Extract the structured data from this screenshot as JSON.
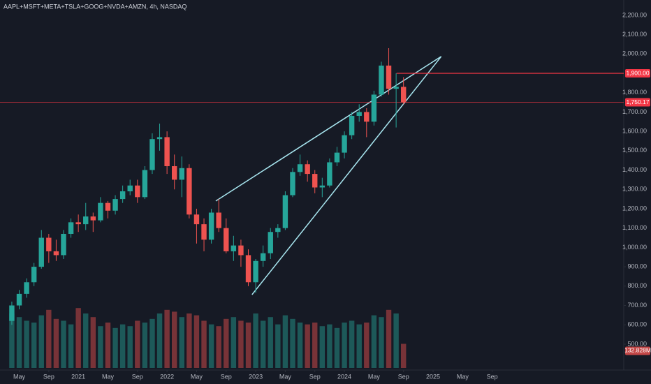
{
  "chart_data": {
    "type": "candlestick",
    "title": "AAPL+MSFT+META+TSLA+GOOG+NVDA+AMZN, 4h, NASDAQ",
    "up_color": "#26a69a",
    "down_color": "#ef5350",
    "xlim": [
      1.4,
      85.8
    ],
    "ylim": [
      377,
      2279
    ],
    "volume_lim": [
      0,
      500
    ],
    "xticks": [
      {
        "value": 4,
        "label": "May"
      },
      {
        "value": 8,
        "label": "Sep"
      },
      {
        "value": 12,
        "label": "2021"
      },
      {
        "value": 16,
        "label": "May"
      },
      {
        "value": 20,
        "label": "Sep"
      },
      {
        "value": 24,
        "label": "2022"
      },
      {
        "value": 28,
        "label": "May"
      },
      {
        "value": 32,
        "label": "Sep"
      },
      {
        "value": 36,
        "label": "2023"
      },
      {
        "value": 40,
        "label": "May"
      },
      {
        "value": 44,
        "label": "Sep"
      },
      {
        "value": 48,
        "label": "2024"
      },
      {
        "value": 52,
        "label": "May"
      },
      {
        "value": 56,
        "label": "Sep"
      },
      {
        "value": 60,
        "label": "2025"
      },
      {
        "value": 64,
        "label": "May"
      },
      {
        "value": 68,
        "label": "Sep"
      }
    ],
    "yticks": [
      {
        "value": 500,
        "label": "500.00"
      },
      {
        "value": 600,
        "label": "600.00"
      },
      {
        "value": 700,
        "label": "700.00"
      },
      {
        "value": 800,
        "label": "800.00"
      },
      {
        "value": 900,
        "label": "900.00"
      },
      {
        "value": 1000,
        "label": "1,000.00"
      },
      {
        "value": 1100,
        "label": "1,100.00"
      },
      {
        "value": 1200,
        "label": "1,200.00"
      },
      {
        "value": 1300,
        "label": "1,300.00"
      },
      {
        "value": 1400,
        "label": "1,400.00"
      },
      {
        "value": 1500,
        "label": "1,500.00"
      },
      {
        "value": 1600,
        "label": "1,600.00"
      },
      {
        "value": 1700,
        "label": "1,700.00"
      },
      {
        "value": 1800,
        "label": "1,800.00"
      },
      {
        "value": 2000,
        "label": "2,000.00"
      },
      {
        "value": 2100,
        "label": "2,100.00"
      },
      {
        "value": 2200,
        "label": "2,200.00"
      }
    ],
    "x": [
      3,
      4,
      5,
      6,
      7,
      8,
      9,
      10,
      11,
      12,
      13,
      14,
      15,
      16,
      17,
      18,
      19,
      20,
      21,
      22,
      23,
      24,
      25,
      26,
      27,
      28,
      29,
      30,
      31,
      32,
      33,
      34,
      35,
      36,
      37,
      38,
      39,
      40,
      41,
      42,
      43,
      44,
      45,
      46,
      47,
      48,
      49,
      50,
      51,
      52,
      53,
      54,
      55,
      56
    ],
    "open": [
      620,
      700,
      760,
      820,
      900,
      1050,
      980,
      960,
      1070,
      1130,
      1120,
      1160,
      1140,
      1230,
      1190,
      1250,
      1290,
      1320,
      1260,
      1400,
      1560,
      1570,
      1420,
      1350,
      1410,
      1170,
      1120,
      1040,
      1180,
      1100,
      980,
      1010,
      960,
      820,
      930,
      970,
      1080,
      1100,
      1270,
      1390,
      1430,
      1380,
      1310,
      1320,
      1440,
      1490,
      1580,
      1680,
      1700,
      1650,
      1790,
      1940,
      1820,
      1830
    ],
    "high": [
      720,
      780,
      840,
      920,
      1090,
      1070,
      1040,
      1090,
      1150,
      1170,
      1230,
      1180,
      1260,
      1240,
      1270,
      1320,
      1350,
      1350,
      1420,
      1590,
      1640,
      1600,
      1480,
      1470,
      1430,
      1200,
      1150,
      1200,
      1250,
      1150,
      1060,
      1040,
      990,
      940,
      1010,
      1100,
      1120,
      1290,
      1410,
      1480,
      1450,
      1400,
      1360,
      1460,
      1520,
      1600,
      1700,
      1740,
      1720,
      1810,
      1960,
      2030,
      1900,
      1880
    ],
    "low": [
      600,
      680,
      740,
      800,
      890,
      920,
      930,
      940,
      1050,
      1080,
      1090,
      1080,
      1130,
      1150,
      1170,
      1230,
      1270,
      1230,
      1250,
      1380,
      1500,
      1380,
      1300,
      1260,
      1150,
      1020,
      980,
      1020,
      1080,
      970,
      930,
      900,
      800,
      765,
      900,
      940,
      1050,
      1090,
      1260,
      1370,
      1340,
      1280,
      1260,
      1310,
      1420,
      1460,
      1560,
      1650,
      1570,
      1630,
      1780,
      1790,
      1620,
      1740
    ],
    "close": [
      700,
      760,
      820,
      900,
      1050,
      980,
      960,
      1070,
      1130,
      1120,
      1160,
      1140,
      1230,
      1190,
      1250,
      1290,
      1320,
      1260,
      1400,
      1560,
      1570,
      1420,
      1350,
      1410,
      1170,
      1120,
      1040,
      1180,
      1100,
      980,
      1010,
      960,
      820,
      930,
      970,
      1080,
      1100,
      1270,
      1390,
      1430,
      1380,
      1310,
      1320,
      1440,
      1490,
      1580,
      1680,
      1700,
      1650,
      1790,
      1940,
      1820,
      1830,
      1750.17
    ],
    "volume": [
      300,
      280,
      260,
      250,
      290,
      320,
      270,
      260,
      240,
      330,
      300,
      280,
      230,
      250,
      220,
      240,
      230,
      260,
      250,
      270,
      300,
      320,
      310,
      280,
      300,
      290,
      260,
      240,
      230,
      270,
      280,
      260,
      250,
      300,
      260,
      280,
      240,
      290,
      270,
      250,
      240,
      250,
      230,
      240,
      220,
      250,
      260,
      240,
      250,
      290,
      280,
      320,
      300,
      132.828
    ],
    "volume_label": "132.828M",
    "hlines": [
      {
        "value": 1900,
        "label": "1,900.00",
        "color": "#f23645"
      },
      {
        "value": 1750.17,
        "label": "1,750.17",
        "color": "#f23645"
      }
    ],
    "trendlines": [
      {
        "x": [
          30.6,
          61.1
        ],
        "y": [
          1240,
          1987
        ],
        "color": "#a8e6f0"
      },
      {
        "x": [
          35.5,
          61.1
        ],
        "y": [
          756,
          1987
        ],
        "color": "#a8e6f0"
      }
    ]
  }
}
